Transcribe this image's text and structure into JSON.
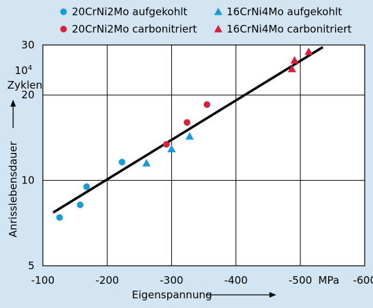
{
  "chart_data": {
    "type": "scatter",
    "x_axis": {
      "label": "Eigenspannung",
      "unit": "MPa",
      "range": [
        -100,
        -600
      ],
      "ticks": [
        -100,
        -200,
        -300,
        -400,
        -500,
        -600
      ],
      "tick_labels": [
        "-100",
        "-200",
        "-300",
        "-400",
        "-500",
        "-600"
      ]
    },
    "y_axis": {
      "label": "Anrisslebensdauer",
      "unit_line1": "10",
      "unit_exp": "4",
      "unit_line2": "Zyklen",
      "scale": "log",
      "range": [
        5,
        30
      ],
      "ticks": [
        5,
        10,
        20,
        30
      ],
      "tick_labels": [
        "5",
        "10",
        "20",
        "30"
      ]
    },
    "grid": true,
    "legend_position": "top",
    "series": [
      {
        "name": "20CrNi2Mo aufgekohlt",
        "marker": "circle",
        "color": "#1a9ad6",
        "points": [
          [
            -126,
            7.4
          ],
          [
            -158,
            8.2
          ],
          [
            -168,
            9.5
          ],
          [
            -223,
            11.6
          ]
        ]
      },
      {
        "name": "20CrNi2Mo carbonitriert",
        "marker": "circle",
        "color": "#d4213d",
        "points": [
          [
            -292,
            13.4
          ],
          [
            -324,
            16.0
          ],
          [
            -355,
            18.5
          ]
        ]
      },
      {
        "name": "16CrNi4Mo aufgekohlt",
        "marker": "triangle",
        "color": "#1a9ad6",
        "points": [
          [
            -261,
            11.5
          ],
          [
            -300,
            12.9
          ],
          [
            -328,
            14.3
          ]
        ]
      },
      {
        "name": "16CrNi4Mo carbonitriert",
        "marker": "triangle",
        "color": "#d4213d",
        "points": [
          [
            -487,
            24.7
          ],
          [
            -491,
            26.5
          ],
          [
            -513,
            28.4
          ]
        ]
      }
    ],
    "fit_line": {
      "color": "#000000",
      "points": [
        [
          -116,
          7.7
        ],
        [
          -535,
          29.5
        ]
      ]
    }
  }
}
